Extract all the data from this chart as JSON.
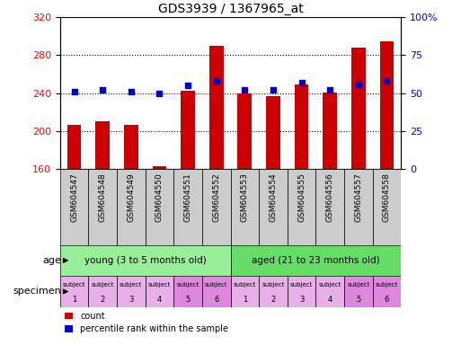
{
  "title": "GDS3939 / 1367965_at",
  "categories": [
    "GSM604547",
    "GSM604548",
    "GSM604549",
    "GSM604550",
    "GSM604551",
    "GSM604552",
    "GSM604553",
    "GSM604554",
    "GSM604555",
    "GSM604556",
    "GSM604557",
    "GSM604558"
  ],
  "bar_values": [
    207,
    210,
    207,
    163,
    243,
    290,
    240,
    237,
    249,
    241,
    288,
    295
  ],
  "percentile_values": [
    51,
    52,
    51,
    50,
    55,
    58,
    52,
    52,
    57,
    52,
    56,
    58
  ],
  "ylim_left": [
    160,
    320
  ],
  "ylim_right": [
    0,
    100
  ],
  "yticks_left": [
    160,
    200,
    240,
    280,
    320
  ],
  "yticks_right": [
    0,
    25,
    50,
    75,
    100
  ],
  "bar_color": "#cc0000",
  "dot_color": "#0000cc",
  "age_groups": [
    {
      "label": "young (3 to 5 months old)",
      "start": 0,
      "end": 5,
      "color": "#99ee99"
    },
    {
      "label": "aged (21 to 23 months old)",
      "start": 6,
      "end": 11,
      "color": "#66dd66"
    }
  ],
  "specimen_colors": [
    "#e8b0e8",
    "#e8b0e8",
    "#e8b0e8",
    "#e8b0e8",
    "#dd88dd",
    "#dd88dd",
    "#e8b0e8",
    "#e8b0e8",
    "#e8b0e8",
    "#e8b0e8",
    "#dd88dd",
    "#dd88dd"
  ],
  "specimen_labels_top": [
    "subject",
    "subject",
    "subject",
    "subject",
    "subject",
    "subject",
    "subject",
    "subject",
    "subject",
    "subject",
    "subject",
    "subject"
  ],
  "specimen_labels_num": [
    "1",
    "2",
    "3",
    "4",
    "5",
    "6",
    "1",
    "2",
    "3",
    "4",
    "5",
    "6"
  ],
  "legend_items": [
    {
      "label": "count",
      "color": "#cc0000"
    },
    {
      "label": "percentile rank within the sample",
      "color": "#0000cc"
    }
  ],
  "xlabel_age": "age",
  "xlabel_specimen": "specimen",
  "xtick_bg": "#cccccc",
  "plot_bg": "#ffffff"
}
